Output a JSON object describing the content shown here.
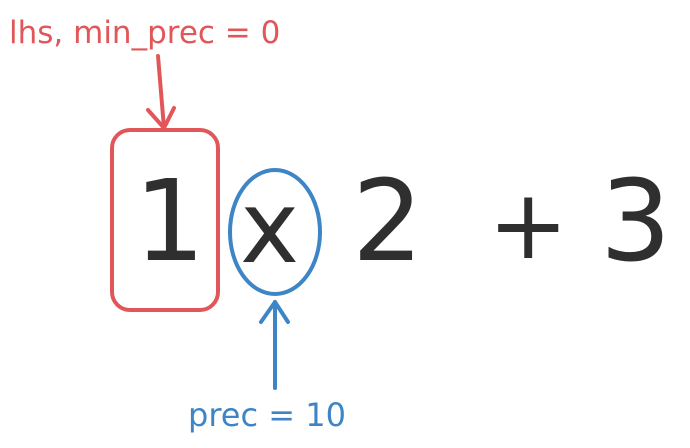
{
  "diagram": {
    "top_annotation": "lhs, min_prec = 0",
    "bottom_annotation": "prec = 10",
    "expression": {
      "first_operand": "1",
      "operator_times": "x",
      "second_operand": "2",
      "operator_plus": "+",
      "third_operand": "3"
    },
    "colors": {
      "red_annotation": "#e15759",
      "blue_annotation": "#3d85c6",
      "glyphs": "#2f2f2f"
    }
  }
}
